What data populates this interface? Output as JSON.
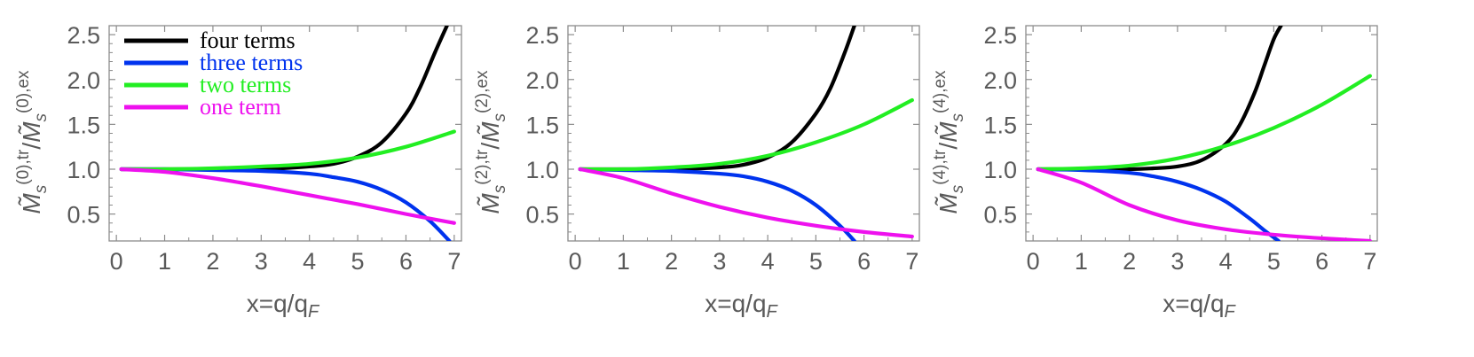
{
  "chart_data": [
    {
      "type": "line",
      "xlabel": "x=q/q",
      "xlabel_sub": "F",
      "ylabel": "M̃s(0),tr/M̃s(0),ex",
      "ylabel_parts": {
        "num_sup": "(0),tr",
        "den_sup": "(0),ex"
      },
      "xlim": [
        -0.15,
        7.15
      ],
      "ylim": [
        0.2,
        2.6
      ],
      "xticks": [
        "0",
        "1",
        "2",
        "3",
        "4",
        "5",
        "6",
        "7"
      ],
      "yticks": [
        "0.5",
        "1.0",
        "1.5",
        "2.0",
        "2.5"
      ],
      "legend": "top-left",
      "series": [
        {
          "name": "four terms",
          "color": "#000000",
          "x": [
            0.1,
            1,
            2,
            3,
            4,
            4.5,
            5,
            5.5,
            6,
            6.3,
            6.6,
            6.85
          ],
          "values": [
            1.0,
            1.0,
            1.0,
            1.0,
            1.03,
            1.06,
            1.14,
            1.3,
            1.62,
            1.92,
            2.3,
            2.6
          ]
        },
        {
          "name": "three terms",
          "color": "#0033ee",
          "x": [
            0.1,
            1,
            2,
            3,
            4,
            4.5,
            5,
            5.5,
            6,
            6.5,
            6.9
          ],
          "values": [
            1.0,
            1.0,
            0.99,
            0.98,
            0.95,
            0.91,
            0.86,
            0.77,
            0.63,
            0.42,
            0.2
          ]
        },
        {
          "name": "two terms",
          "color": "#22ee22",
          "x": [
            0.1,
            1,
            2,
            3,
            4,
            5,
            6,
            7
          ],
          "values": [
            1.0,
            1.0,
            1.01,
            1.03,
            1.06,
            1.13,
            1.25,
            1.42
          ]
        },
        {
          "name": "one term",
          "color": "#ee11ee",
          "x": [
            0.1,
            1,
            2,
            3,
            4,
            5,
            6,
            7
          ],
          "values": [
            1.0,
            0.97,
            0.9,
            0.81,
            0.71,
            0.61,
            0.5,
            0.4
          ]
        }
      ]
    },
    {
      "type": "line",
      "xlabel": "x=q/q",
      "xlabel_sub": "F",
      "ylabel": "M̃s(2),tr/M̃s(2),ex",
      "ylabel_parts": {
        "num_sup": "(2),tr",
        "den_sup": "(2),ex"
      },
      "xlim": [
        -0.15,
        7.15
      ],
      "ylim": [
        0.2,
        2.6
      ],
      "xticks": [
        "0",
        "1",
        "2",
        "3",
        "4",
        "5",
        "6",
        "7"
      ],
      "yticks": [
        "0.5",
        "1.0",
        "1.5",
        "2.0",
        "2.5"
      ],
      "series": [
        {
          "name": "four terms",
          "color": "#000000",
          "x": [
            0.1,
            1,
            2,
            3,
            3.5,
            4,
            4.5,
            5,
            5.3,
            5.6,
            5.8
          ],
          "values": [
            1.0,
            1.0,
            1.0,
            1.02,
            1.05,
            1.13,
            1.3,
            1.62,
            1.9,
            2.3,
            2.6
          ]
        },
        {
          "name": "three terms",
          "color": "#0033ee",
          "x": [
            0.1,
            1,
            2,
            3,
            3.5,
            4,
            4.5,
            5,
            5.5,
            5.8
          ],
          "values": [
            1.0,
            0.99,
            0.98,
            0.95,
            0.92,
            0.86,
            0.76,
            0.6,
            0.37,
            0.2
          ]
        },
        {
          "name": "two terms",
          "color": "#22ee22",
          "x": [
            0.1,
            1,
            2,
            3,
            4,
            5,
            6,
            7
          ],
          "values": [
            1.0,
            1.0,
            1.02,
            1.06,
            1.15,
            1.3,
            1.5,
            1.77
          ]
        },
        {
          "name": "one term",
          "color": "#ee11ee",
          "x": [
            0.1,
            1,
            2,
            3,
            4,
            5,
            6,
            7
          ],
          "values": [
            1.0,
            0.9,
            0.73,
            0.58,
            0.46,
            0.37,
            0.3,
            0.25
          ]
        }
      ]
    },
    {
      "type": "line",
      "xlabel": "x=q/q",
      "xlabel_sub": "F",
      "ylabel": "M̃s(4),tr/M̃s(4),ex",
      "ylabel_parts": {
        "num_sup": "(4),tr",
        "den_sup": "(4),ex"
      },
      "xlim": [
        -0.15,
        7.15
      ],
      "ylim": [
        0.2,
        2.6
      ],
      "xticks": [
        "0",
        "1",
        "2",
        "3",
        "4",
        "5",
        "6",
        "7"
      ],
      "yticks": [
        "0.5",
        "1.0",
        "1.5",
        "2.0",
        "2.5"
      ],
      "series": [
        {
          "name": "four terms",
          "color": "#000000",
          "x": [
            0.1,
            1,
            2,
            2.5,
            3,
            3.5,
            4,
            4.3,
            4.6,
            4.8,
            5.0,
            5.15
          ],
          "values": [
            1.0,
            1.0,
            1.0,
            1.01,
            1.03,
            1.1,
            1.28,
            1.5,
            1.85,
            2.15,
            2.45,
            2.6
          ]
        },
        {
          "name": "three terms",
          "color": "#0033ee",
          "x": [
            0.1,
            1,
            2,
            2.5,
            3,
            3.5,
            4,
            4.5,
            4.8,
            5.1
          ],
          "values": [
            1.0,
            0.99,
            0.96,
            0.92,
            0.86,
            0.77,
            0.64,
            0.45,
            0.32,
            0.2
          ]
        },
        {
          "name": "two terms",
          "color": "#22ee22",
          "x": [
            0.1,
            1,
            2,
            3,
            4,
            5,
            6,
            7
          ],
          "values": [
            1.0,
            1.01,
            1.04,
            1.12,
            1.26,
            1.46,
            1.72,
            2.04
          ]
        },
        {
          "name": "one term",
          "color": "#ee11ee",
          "x": [
            0.1,
            1,
            2,
            3,
            4,
            5,
            6,
            7
          ],
          "values": [
            1.0,
            0.85,
            0.6,
            0.43,
            0.33,
            0.27,
            0.23,
            0.2
          ]
        }
      ]
    }
  ]
}
